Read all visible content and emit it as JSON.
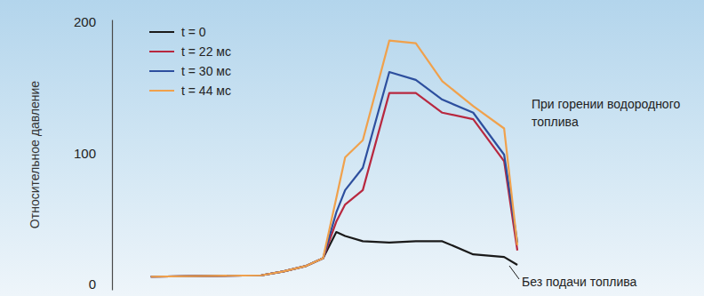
{
  "chart_data": {
    "type": "line",
    "y_label": "Относительное давление",
    "x": [
      0,
      12.5,
      15,
      17.5,
      19.5,
      21,
      22,
      24,
      27,
      30,
      33,
      36.5,
      40,
      41.5
    ],
    "xlim": [
      -4.4,
      42
    ],
    "ylim": [
      -4,
      202
    ],
    "yticks": [
      0,
      100,
      200
    ],
    "tick_labels": "y",
    "grid": false,
    "legend": "top-left",
    "series": [
      {
        "name": "t = 0",
        "color": "#1a1a1a",
        "values": [
          6,
          7,
          10,
          14,
          20,
          40,
          37,
          33,
          32,
          33,
          33,
          23,
          21,
          15
        ]
      },
      {
        "name": "t = 22 мс",
        "color": "#b8283f",
        "values": [
          6,
          7,
          10,
          14,
          20,
          48,
          61,
          72,
          146,
          146,
          131,
          126,
          94,
          26
        ]
      },
      {
        "name": "t = 30 мс",
        "color": "#2d4f9e",
        "values": [
          6,
          7,
          10,
          14,
          20,
          55,
          72,
          89,
          162,
          156,
          141,
          131,
          99,
          32
        ]
      },
      {
        "name": "t = 44 мс",
        "color": "#f0a14c",
        "values": [
          6,
          7,
          10,
          14,
          20,
          66,
          97,
          110,
          186,
          184,
          155,
          136,
          119,
          30
        ]
      }
    ],
    "annotations": [
      {
        "text": "При горении водородного топлива"
      },
      {
        "text": "Без подачи топлива"
      }
    ]
  }
}
